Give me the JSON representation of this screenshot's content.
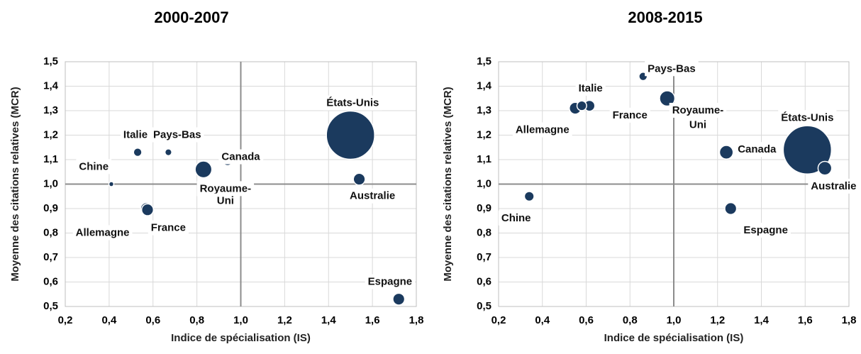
{
  "colors": {
    "bubble": "#1b3a5e",
    "bubble_outline": "#ffffff",
    "grid": "#d9d9d9",
    "cross_axis": "#8c8c8c",
    "frame": "#bfbfbf",
    "label_bg": "#ffffff"
  },
  "chart_data": [
    {
      "type": "scatter",
      "variant": "bubble",
      "title": "2000-2007",
      "xlabel": "Indice de spécialisation (IS)",
      "ylabel": "Moyenne des citations relatives (MCR)",
      "xlim": [
        0.2,
        1.8
      ],
      "ylim": [
        0.5,
        1.5
      ],
      "x_ticks": [
        "0,2",
        "0,4",
        "0,6",
        "0,8",
        "1,0",
        "1,2",
        "1,4",
        "1,6",
        "1,8"
      ],
      "y_ticks": [
        "1,5",
        "1,4",
        "1,3",
        "1,2",
        "1,1",
        "1,0",
        "0,9",
        "0,8",
        "0,7",
        "0,6",
        "0,5"
      ],
      "grid": true,
      "cross_at": {
        "x": 1.0,
        "y": 1.0
      },
      "points": [
        {
          "name": "Chine",
          "x": 0.41,
          "y": 1.0,
          "size": 1
        },
        {
          "name": "Italie",
          "x": 0.53,
          "y": 1.13,
          "size": 3
        },
        {
          "name": "Allemagne",
          "x": 0.57,
          "y": 0.9,
          "size": 6
        },
        {
          "name": "France",
          "x": 0.575,
          "y": 0.895,
          "size": 6
        },
        {
          "name": "Pays-Bas",
          "x": 0.67,
          "y": 1.13,
          "size": 2
        },
        {
          "name": "Royaume-Uni",
          "x": 0.83,
          "y": 1.06,
          "size": 12
        },
        {
          "name": "Canada",
          "x": 0.94,
          "y": 1.1,
          "size": 6
        },
        {
          "name": "États-Unis",
          "x": 1.5,
          "y": 1.2,
          "size": 100
        },
        {
          "name": "Australie",
          "x": 1.54,
          "y": 1.02,
          "size": 6
        },
        {
          "name": "Espagne",
          "x": 1.72,
          "y": 0.53,
          "size": 6
        }
      ],
      "labels": [
        {
          "text": "Chine",
          "ax": 0.33,
          "ay": 1.07
        },
        {
          "text": "Italie",
          "ax": 0.52,
          "ay": 1.2
        },
        {
          "text": "Pays-Bas",
          "ax": 0.71,
          "ay": 1.2
        },
        {
          "text": "Canada",
          "ax": 1.0,
          "ay": 1.11
        },
        {
          "text": "États-Unis",
          "ax": 1.51,
          "ay": 1.33
        },
        {
          "text": "Royaume-",
          "ax": 0.93,
          "ay": 0.98
        },
        {
          "text": "Uni",
          "ax": 0.93,
          "ay": 0.93
        },
        {
          "text": "Australie",
          "ax": 1.6,
          "ay": 0.95
        },
        {
          "text": "Allemagne",
          "ax": 0.37,
          "ay": 0.8
        },
        {
          "text": "France",
          "ax": 0.67,
          "ay": 0.82
        },
        {
          "text": "Espagne",
          "ax": 1.68,
          "ay": 0.6
        }
      ]
    },
    {
      "type": "scatter",
      "variant": "bubble",
      "title": "2008-2015",
      "xlabel": "Indice de spécialisation (IS)",
      "ylabel": "Moyenne des citations relatives (MCR)",
      "xlim": [
        0.2,
        1.8
      ],
      "ylim": [
        0.5,
        1.5
      ],
      "x_ticks": [
        "0,2",
        "0,4",
        "0,6",
        "0,8",
        "1,0",
        "1,2",
        "1,4",
        "1,6",
        "1,8"
      ],
      "y_ticks": [
        "1,5",
        "1,4",
        "1,3",
        "1,2",
        "1,1",
        "1,0",
        "0,9",
        "0,8",
        "0,7",
        "0,6",
        "0,5"
      ],
      "grid": true,
      "cross_at": {
        "x": 1.0,
        "y": 1.0
      },
      "points": [
        {
          "name": "Chine",
          "x": 0.34,
          "y": 0.95,
          "size": 4
        },
        {
          "name": "Allemagne",
          "x": 0.55,
          "y": 1.31,
          "size": 6
        },
        {
          "name": "Italie",
          "x": 0.58,
          "y": 1.32,
          "size": 4
        },
        {
          "name": "France",
          "x": 0.615,
          "y": 1.32,
          "size": 5
        },
        {
          "name": "Pays-Bas",
          "x": 0.86,
          "y": 1.44,
          "size": 3
        },
        {
          "name": "Royaume-Uni",
          "x": 0.97,
          "y": 1.35,
          "size": 10
        },
        {
          "name": "Canada",
          "x": 1.24,
          "y": 1.13,
          "size": 8
        },
        {
          "name": "Espagne",
          "x": 1.26,
          "y": 0.9,
          "size": 6
        },
        {
          "name": "États-Unis",
          "x": 1.61,
          "y": 1.14,
          "size": 100
        },
        {
          "name": "Australie",
          "x": 1.69,
          "y": 1.065,
          "size": 8
        }
      ],
      "labels": [
        {
          "text": "Pays-Bas",
          "ax": 0.99,
          "ay": 1.47
        },
        {
          "text": "Italie",
          "ax": 0.62,
          "ay": 1.39
        },
        {
          "text": "Allemagne",
          "ax": 0.4,
          "ay": 1.22
        },
        {
          "text": "France",
          "ax": 0.8,
          "ay": 1.28
        },
        {
          "text": "Royaume-",
          "ax": 1.11,
          "ay": 1.3
        },
        {
          "text": "Uni",
          "ax": 1.11,
          "ay": 1.24
        },
        {
          "text": "États-Unis",
          "ax": 1.61,
          "ay": 1.27
        },
        {
          "text": "Canada",
          "ax": 1.38,
          "ay": 1.14
        },
        {
          "text": "Australie",
          "ax": 1.73,
          "ay": 0.99
        },
        {
          "text": "Chine",
          "ax": 0.28,
          "ay": 0.86
        },
        {
          "text": "Espagne",
          "ax": 1.42,
          "ay": 0.81
        }
      ]
    }
  ]
}
